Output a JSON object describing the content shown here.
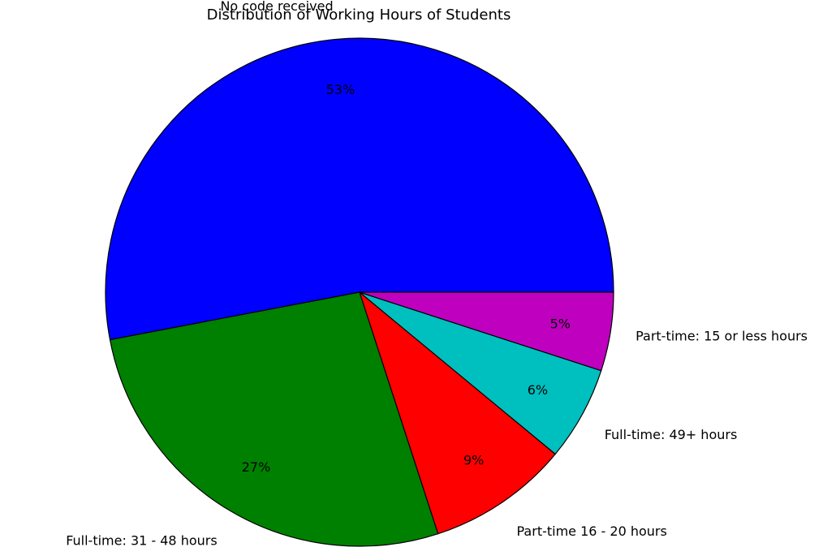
{
  "chart_data": {
    "type": "pie",
    "title": "Distribution of Working Hours of Students",
    "slices": [
      {
        "label": "No code received",
        "percent_label": "53%",
        "value": 53,
        "color": "#0000ff"
      },
      {
        "label": "Full-time: 31 - 48 hours",
        "percent_label": "27%",
        "value": 27,
        "color": "#008000"
      },
      {
        "label": "Part-time 16 - 20 hours",
        "percent_label": "9%",
        "value": 9,
        "color": "#ff0000"
      },
      {
        "label": "Full-time: 49+ hours",
        "percent_label": "6%",
        "value": 6,
        "color": "#00bfbf"
      },
      {
        "label": "Part-time: 15 or less hours",
        "percent_label": "5%",
        "value": 5,
        "color": "#bf00bf"
      }
    ],
    "start_angle_deg": 0,
    "direction": "counterclockwise",
    "legend": "none"
  }
}
